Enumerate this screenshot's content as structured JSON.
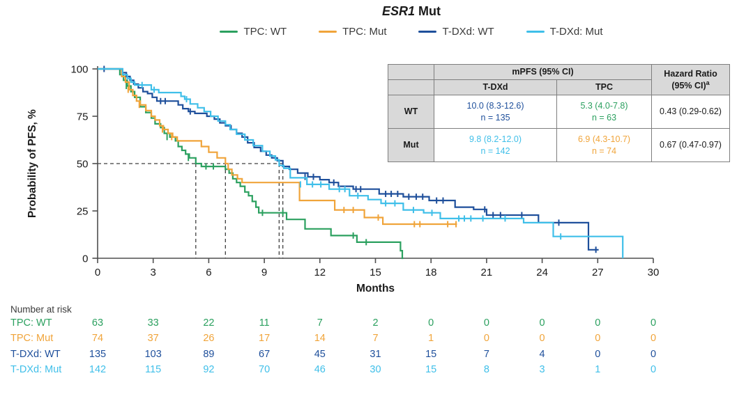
{
  "title": {
    "gene": "ESR1",
    "suffix": " Mut"
  },
  "colors": {
    "green": "#2BA05F",
    "orange": "#F0A43A",
    "dark_blue": "#1E4F9B",
    "light_blue": "#3FBFE9",
    "axis": "#4F4F4F",
    "dash": "#3F3F3F",
    "table_border": "#7E7E7E",
    "table_header_bg": "#D9D9D9",
    "text": "#1A1A1A"
  },
  "legend": [
    {
      "label": "TPC: WT",
      "color_key": "green"
    },
    {
      "label": "TPC: Mut",
      "color_key": "orange"
    },
    {
      "label": "T-DXd: WT",
      "color_key": "dark_blue"
    },
    {
      "label": "T-DXd: Mut",
      "color_key": "light_blue"
    }
  ],
  "axes": {
    "y_label": "Probability of PFS, %",
    "x_label": "Months",
    "y_ticks": [
      0,
      25,
      50,
      75,
      100
    ],
    "x_ticks": [
      0,
      3,
      6,
      9,
      12,
      15,
      18,
      21,
      24,
      27,
      30
    ]
  },
  "summary_table": {
    "mpfs_header": "mPFS (95% CI)",
    "hr_line1": "Hazard Ratio",
    "hr_line2": "(95% CI)",
    "hr_sup": "a",
    "col_tdxd": "T-DXd",
    "col_tpc": "TPC",
    "rows": {
      "wt": {
        "label": "WT",
        "tdxd_value": "10.0 (8.3-12.6)",
        "tdxd_n": "n = 135",
        "tpc_value": "5.3 (4.0-7.8)",
        "tpc_n": "n = 63",
        "hr": "0.43 (0.29-0.62)"
      },
      "mut": {
        "label": "Mut",
        "tdxd_value": "9.8 (8.2-12.0)",
        "tdxd_n": "n = 142",
        "tpc_value": "6.9 (4.3-10.7)",
        "tpc_n": "n = 74",
        "hr": "0.67 (0.47-0.97)"
      }
    }
  },
  "number_at_risk": {
    "heading": "Number at risk",
    "months": [
      0,
      3,
      6,
      9,
      12,
      15,
      18,
      21,
      24,
      27,
      30
    ],
    "rows": [
      {
        "label": "TPC: WT",
        "color_key": "green",
        "values": [
          63,
          33,
          22,
          11,
          7,
          2,
          0,
          0,
          0,
          0,
          0
        ]
      },
      {
        "label": "TPC: Mut",
        "color_key": "orange",
        "values": [
          74,
          37,
          26,
          17,
          14,
          7,
          1,
          0,
          0,
          0,
          0
        ]
      },
      {
        "label": "T-DXd: WT",
        "color_key": "dark_blue",
        "values": [
          135,
          103,
          89,
          67,
          45,
          31,
          15,
          7,
          4,
          0,
          0
        ]
      },
      {
        "label": "T-DXd: Mut",
        "color_key": "light_blue",
        "values": [
          142,
          115,
          92,
          70,
          46,
          30,
          15,
          8,
          3,
          1,
          0
        ]
      }
    ]
  },
  "chart_data": {
    "type": "line",
    "subtype": "kaplan-meier-step",
    "title": "ESR1 Mut",
    "xlabel": "Months",
    "ylabel": "Probability of PFS, %",
    "xlim": [
      0,
      30
    ],
    "ylim": [
      0,
      100
    ],
    "x_tick_step": 3,
    "y_tick_step": 25,
    "grid": false,
    "legend_position": "top",
    "median_guides": {
      "level_pct": 50,
      "h_line_to_month": 10.0,
      "vertical_months": [
        5.3,
        6.9,
        9.8,
        10.0
      ]
    },
    "series": [
      {
        "name": "TPC: WT",
        "color_key": "green",
        "median_pfs": 5.3,
        "n": 63,
        "end_month": 16.5,
        "steps": [
          [
            1.2,
            97
          ],
          [
            1.4,
            94
          ],
          [
            1.6,
            91
          ],
          [
            1.8,
            88
          ],
          [
            2.0,
            85
          ],
          [
            2.3,
            80
          ],
          [
            2.6,
            77
          ],
          [
            2.9,
            74
          ],
          [
            3.1,
            71
          ],
          [
            3.4,
            69
          ],
          [
            3.6,
            66
          ],
          [
            3.9,
            64
          ],
          [
            4.2,
            62
          ],
          [
            4.35,
            59
          ],
          [
            4.55,
            57
          ],
          [
            4.75,
            55
          ],
          [
            4.95,
            53
          ],
          [
            5.3,
            50
          ],
          [
            5.6,
            48.5
          ],
          [
            6.9,
            47
          ],
          [
            7.1,
            45
          ],
          [
            7.3,
            42
          ],
          [
            7.5,
            40
          ],
          [
            7.7,
            38
          ],
          [
            7.95,
            35
          ],
          [
            8.15,
            33
          ],
          [
            8.35,
            30
          ],
          [
            8.55,
            27
          ],
          [
            8.7,
            24
          ],
          [
            10.2,
            20.5
          ],
          [
            11.2,
            15.5
          ],
          [
            12.6,
            12
          ],
          [
            14.0,
            8.5
          ],
          [
            16.35,
            4
          ],
          [
            16.45,
            0
          ]
        ],
        "censors": [
          [
            1.55,
            91
          ],
          [
            3.75,
            64
          ],
          [
            4.9,
            53
          ],
          [
            5.85,
            48.5
          ],
          [
            6.25,
            48.5
          ],
          [
            8.9,
            24
          ],
          [
            10.0,
            24
          ],
          [
            13.8,
            12
          ],
          [
            14.5,
            8.5
          ]
        ]
      },
      {
        "name": "TPC: Mut",
        "color_key": "orange",
        "median_pfs": 6.9,
        "n": 74,
        "end_month": 19.4,
        "steps": [
          [
            1.3,
            96
          ],
          [
            1.5,
            93
          ],
          [
            1.7,
            89
          ],
          [
            1.9,
            86
          ],
          [
            2.1,
            83
          ],
          [
            2.3,
            81
          ],
          [
            2.6,
            78
          ],
          [
            2.9,
            75
          ],
          [
            3.1,
            73
          ],
          [
            3.35,
            70
          ],
          [
            3.55,
            68
          ],
          [
            3.8,
            66
          ],
          [
            4.05,
            64
          ],
          [
            4.3,
            62
          ],
          [
            5.6,
            59
          ],
          [
            6.0,
            56
          ],
          [
            6.45,
            53
          ],
          [
            6.9,
            50
          ],
          [
            7.05,
            47
          ],
          [
            7.25,
            44
          ],
          [
            7.55,
            42
          ],
          [
            7.8,
            40
          ],
          [
            10.9,
            30.5
          ],
          [
            12.8,
            25.5
          ],
          [
            14.4,
            21.5
          ],
          [
            15.4,
            18
          ]
        ],
        "censors": [
          [
            1.65,
            89
          ],
          [
            2.25,
            81
          ],
          [
            3.5,
            68
          ],
          [
            4.0,
            64
          ],
          [
            13.3,
            25.5
          ],
          [
            13.8,
            25.5
          ],
          [
            15.15,
            21.5
          ],
          [
            17.1,
            18
          ],
          [
            17.4,
            18
          ],
          [
            18.9,
            18
          ],
          [
            19.35,
            18
          ]
        ]
      },
      {
        "name": "T-DXd: WT",
        "color_key": "dark_blue",
        "median_pfs": 10.0,
        "n": 135,
        "end_month": 27.05,
        "steps": [
          [
            1.35,
            98
          ],
          [
            1.55,
            96
          ],
          [
            1.75,
            94
          ],
          [
            1.95,
            92
          ],
          [
            2.2,
            90
          ],
          [
            2.45,
            88
          ],
          [
            2.7,
            87
          ],
          [
            2.95,
            85
          ],
          [
            3.2,
            83
          ],
          [
            4.35,
            81
          ],
          [
            4.6,
            79
          ],
          [
            4.9,
            77.5
          ],
          [
            5.25,
            76.5
          ],
          [
            5.9,
            75
          ],
          [
            6.3,
            73.5
          ],
          [
            6.6,
            71.5
          ],
          [
            6.9,
            70
          ],
          [
            7.2,
            68
          ],
          [
            7.5,
            66
          ],
          [
            7.8,
            64
          ],
          [
            8.1,
            61
          ],
          [
            8.45,
            58.5
          ],
          [
            8.8,
            56.5
          ],
          [
            9.1,
            54.5
          ],
          [
            9.4,
            53
          ],
          [
            9.7,
            51.5
          ],
          [
            10.0,
            48.5
          ],
          [
            10.35,
            47
          ],
          [
            10.8,
            45
          ],
          [
            11.35,
            43
          ],
          [
            12.0,
            41.5
          ],
          [
            12.5,
            40
          ],
          [
            13.0,
            38
          ],
          [
            13.8,
            36.5
          ],
          [
            15.2,
            34
          ],
          [
            16.5,
            32.5
          ],
          [
            17.9,
            30.5
          ],
          [
            19.3,
            27
          ],
          [
            20.3,
            25.8
          ],
          [
            21.0,
            22.8
          ],
          [
            23.8,
            18.8
          ],
          [
            26.5,
            4.5
          ]
        ],
        "censors": [
          [
            0.35,
            100
          ],
          [
            3.4,
            83
          ],
          [
            3.65,
            83
          ],
          [
            5.0,
            77.5
          ],
          [
            11.2,
            43
          ],
          [
            11.65,
            43
          ],
          [
            12.75,
            40
          ],
          [
            13.95,
            36.5
          ],
          [
            14.2,
            36.5
          ],
          [
            15.55,
            34
          ],
          [
            15.85,
            34
          ],
          [
            16.2,
            34
          ],
          [
            16.8,
            32.5
          ],
          [
            17.2,
            32.5
          ],
          [
            17.55,
            32.5
          ],
          [
            18.3,
            30.5
          ],
          [
            18.65,
            30.5
          ],
          [
            20.9,
            25.8
          ],
          [
            21.35,
            22.8
          ],
          [
            21.75,
            22.8
          ],
          [
            22.9,
            22.8
          ],
          [
            24.9,
            18.8
          ],
          [
            26.9,
            4.5
          ]
        ]
      },
      {
        "name": "T-DXd: Mut",
        "color_key": "light_blue",
        "median_pfs": 9.8,
        "n": 142,
        "end_month": 28.35,
        "steps": [
          [
            1.35,
            97
          ],
          [
            1.6,
            95
          ],
          [
            1.8,
            93
          ],
          [
            2.0,
            91.5
          ],
          [
            2.9,
            89
          ],
          [
            3.3,
            87.5
          ],
          [
            4.5,
            85.5
          ],
          [
            4.7,
            84
          ],
          [
            5.0,
            81.5
          ],
          [
            5.4,
            79.5
          ],
          [
            5.75,
            77.5
          ],
          [
            6.1,
            75
          ],
          [
            6.5,
            72.5
          ],
          [
            6.9,
            70.5
          ],
          [
            7.15,
            68
          ],
          [
            7.5,
            65.5
          ],
          [
            7.95,
            62.5
          ],
          [
            8.4,
            59.5
          ],
          [
            8.9,
            56.5
          ],
          [
            9.3,
            54
          ],
          [
            9.6,
            52
          ],
          [
            9.8,
            49
          ],
          [
            10.05,
            47.5
          ],
          [
            10.4,
            42.5
          ],
          [
            11.3,
            39
          ],
          [
            12.5,
            36.5
          ],
          [
            13.6,
            33
          ],
          [
            14.6,
            31
          ],
          [
            15.3,
            29
          ],
          [
            16.5,
            25.5
          ],
          [
            17.6,
            24
          ],
          [
            18.5,
            21
          ],
          [
            23.0,
            18.8
          ],
          [
            24.6,
            11.5
          ],
          [
            28.35,
            0
          ]
        ],
        "censors": [
          [
            2.4,
            91.5
          ],
          [
            3.05,
            89
          ],
          [
            4.8,
            84
          ],
          [
            10.95,
            39
          ],
          [
            11.6,
            39
          ],
          [
            12.05,
            39
          ],
          [
            13.05,
            36.5
          ],
          [
            13.35,
            36.5
          ],
          [
            14.05,
            33
          ],
          [
            15.55,
            29
          ],
          [
            16.05,
            29
          ],
          [
            17.05,
            25.5
          ],
          [
            18.05,
            24
          ],
          [
            19.5,
            21
          ],
          [
            19.8,
            21
          ],
          [
            20.15,
            21
          ],
          [
            20.8,
            21
          ],
          [
            22.0,
            21
          ],
          [
            25.0,
            11.5
          ]
        ]
      }
    ]
  }
}
